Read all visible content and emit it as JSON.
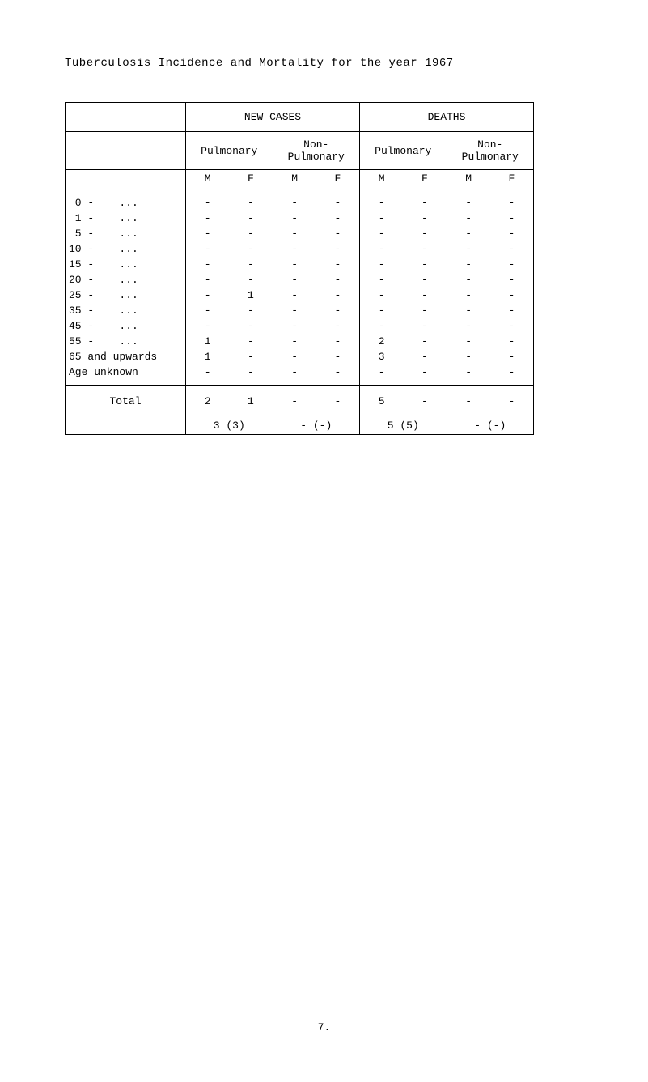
{
  "title": "Tuberculosis Incidence and Mortality for the year 1967",
  "headers": {
    "new_cases": "NEW CASES",
    "deaths": "DEATHS",
    "pulmonary": "Pulmonary",
    "non_pulmonary": "Non-\nPulmonary",
    "m": "M",
    "f": "F"
  },
  "rows": [
    {
      "label": " 0 -    ...",
      "nc_p_m": "-",
      "nc_p_f": "-",
      "nc_np_m": "-",
      "nc_np_f": "-",
      "d_p_m": "-",
      "d_p_f": "-",
      "d_np_m": "-",
      "d_np_f": "-"
    },
    {
      "label": " 1 -    ...",
      "nc_p_m": "-",
      "nc_p_f": "-",
      "nc_np_m": "-",
      "nc_np_f": "-",
      "d_p_m": "-",
      "d_p_f": "-",
      "d_np_m": "-",
      "d_np_f": "-"
    },
    {
      "label": " 5 -    ...",
      "nc_p_m": "-",
      "nc_p_f": "-",
      "nc_np_m": "-",
      "nc_np_f": "-",
      "d_p_m": "-",
      "d_p_f": "-",
      "d_np_m": "-",
      "d_np_f": "-"
    },
    {
      "label": "10 -    ...",
      "nc_p_m": "-",
      "nc_p_f": "-",
      "nc_np_m": "-",
      "nc_np_f": "-",
      "d_p_m": "-",
      "d_p_f": "-",
      "d_np_m": "-",
      "d_np_f": "-"
    },
    {
      "label": "15 -    ...",
      "nc_p_m": "-",
      "nc_p_f": "-",
      "nc_np_m": "-",
      "nc_np_f": "-",
      "d_p_m": "-",
      "d_p_f": "-",
      "d_np_m": "-",
      "d_np_f": "-"
    },
    {
      "label": "20 -    ...",
      "nc_p_m": "-",
      "nc_p_f": "-",
      "nc_np_m": "-",
      "nc_np_f": "-",
      "d_p_m": "-",
      "d_p_f": "-",
      "d_np_m": "-",
      "d_np_f": "-"
    },
    {
      "label": "25 -    ...",
      "nc_p_m": "-",
      "nc_p_f": "1",
      "nc_np_m": "-",
      "nc_np_f": "-",
      "d_p_m": "-",
      "d_p_f": "-",
      "d_np_m": "-",
      "d_np_f": "-"
    },
    {
      "label": "35 -    ...",
      "nc_p_m": "-",
      "nc_p_f": "-",
      "nc_np_m": "-",
      "nc_np_f": "-",
      "d_p_m": "-",
      "d_p_f": "-",
      "d_np_m": "-",
      "d_np_f": "-"
    },
    {
      "label": "45 -    ...",
      "nc_p_m": "-",
      "nc_p_f": "-",
      "nc_np_m": "-",
      "nc_np_f": "-",
      "d_p_m": "-",
      "d_p_f": "-",
      "d_np_m": "-",
      "d_np_f": "-"
    },
    {
      "label": "55 -    ...",
      "nc_p_m": "1",
      "nc_p_f": "-",
      "nc_np_m": "-",
      "nc_np_f": "-",
      "d_p_m": "2",
      "d_p_f": "-",
      "d_np_m": "-",
      "d_np_f": "-"
    },
    {
      "label": "65 and upwards",
      "nc_p_m": "1",
      "nc_p_f": "-",
      "nc_np_m": "-",
      "nc_np_f": "-",
      "d_p_m": "3",
      "d_p_f": "-",
      "d_np_m": "-",
      "d_np_f": "-"
    },
    {
      "label": "Age unknown",
      "nc_p_m": "-",
      "nc_p_f": "-",
      "nc_np_m": "-",
      "nc_np_f": "-",
      "d_p_m": "-",
      "d_p_f": "-",
      "d_np_m": "-",
      "d_np_f": "-"
    }
  ],
  "total": {
    "label": "Total",
    "line1": {
      "nc_p_m": "2",
      "nc_p_f": "1",
      "nc_np_m": "-",
      "nc_np_f": "-",
      "d_p_m": "5",
      "d_p_f": "-",
      "d_np_m": "-",
      "d_np_f": "-"
    },
    "line2": {
      "nc_p": "3 (3)",
      "nc_np": "- (-)",
      "d_p": "5 (5)",
      "d_np": "- (-)"
    }
  },
  "page_number": "7."
}
